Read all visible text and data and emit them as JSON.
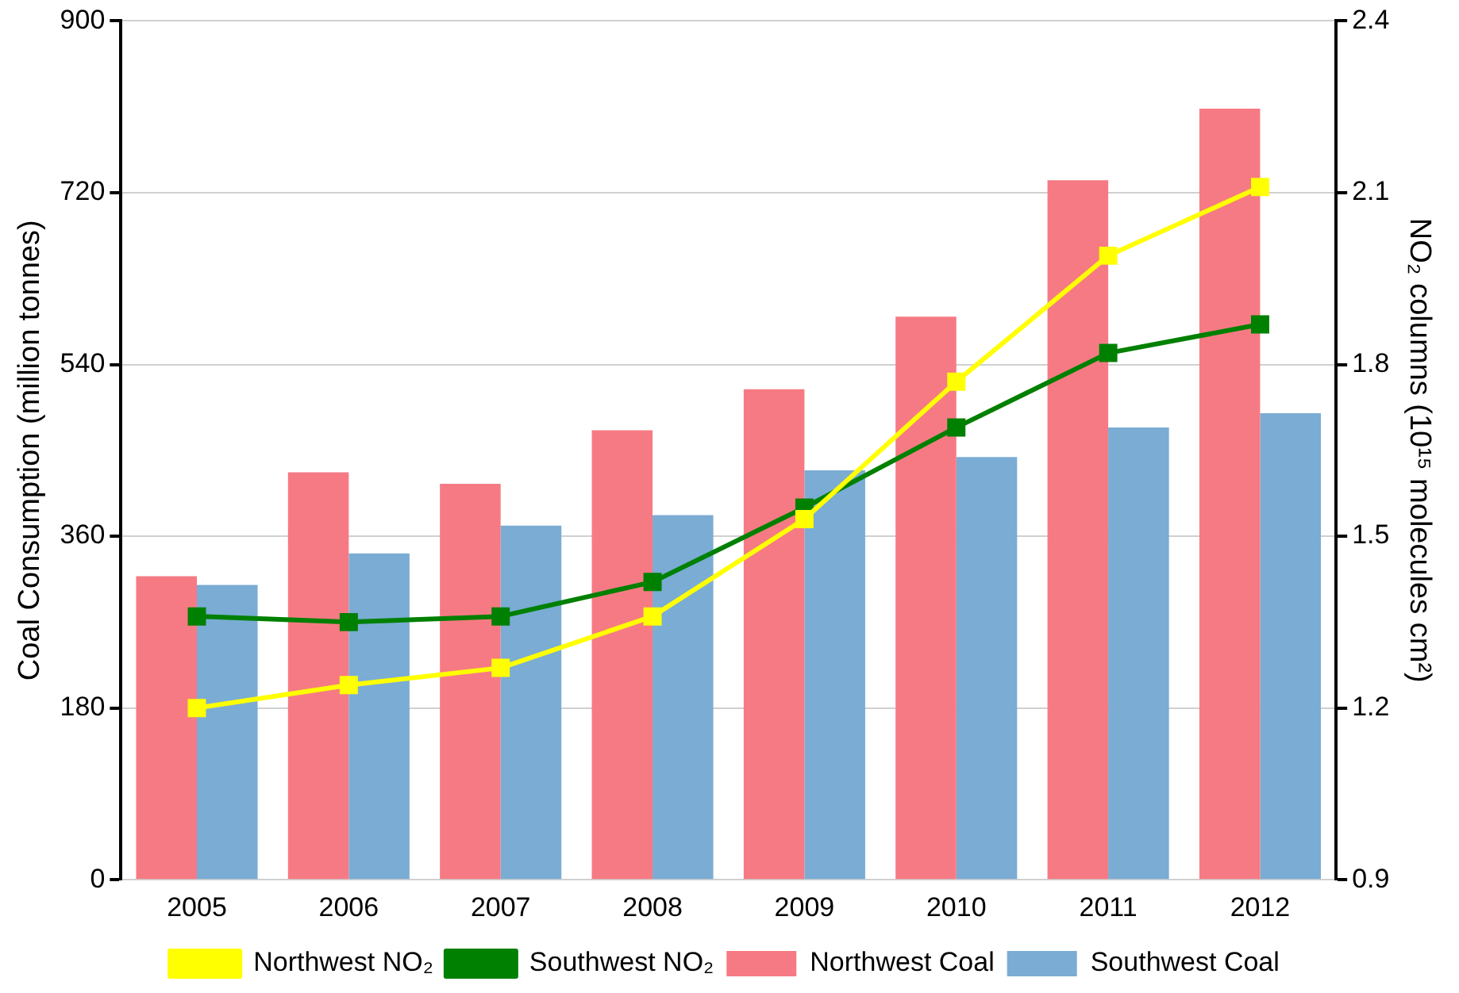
{
  "chart_data": {
    "type": "bar",
    "categories": [
      "2005",
      "2006",
      "2007",
      "2008",
      "2009",
      "2010",
      "2011",
      "2012"
    ],
    "series": [
      {
        "name": "Northwest Coal",
        "color": "#f67a84",
        "values": [
          318,
          427,
          415,
          471,
          514,
          590,
          733,
          808
        ]
      },
      {
        "name": "Southwest Coal",
        "color": "#7aacd4",
        "values": [
          309,
          342,
          371,
          382,
          429,
          443,
          474,
          489
        ]
      },
      {
        "name": "Northwest NO₂",
        "type": "line",
        "axis": "y2",
        "color": "#ffff00",
        "values": [
          1.2,
          1.24,
          1.27,
          1.36,
          1.53,
          1.77,
          1.99,
          2.11
        ]
      },
      {
        "name": "Southwest NO₂",
        "type": "line",
        "axis": "y2",
        "color": "#008000",
        "values": [
          1.36,
          1.35,
          1.36,
          1.42,
          1.55,
          1.69,
          1.82,
          1.87
        ]
      }
    ],
    "ylabel": "Coal Consumption (million tonnes)",
    "y2label": "NO₂ columns (10¹⁵ molecules cm²)",
    "ylim": [
      0,
      900
    ],
    "yticks": [
      0,
      180,
      360,
      540,
      720,
      900
    ],
    "y2lim": [
      0.9,
      2.4
    ],
    "y2ticks": [
      0.9,
      1.2,
      1.5,
      1.8,
      2.1,
      2.4
    ],
    "grid": "y",
    "legend": "bottom",
    "marker": "square",
    "line_style": "solid"
  }
}
